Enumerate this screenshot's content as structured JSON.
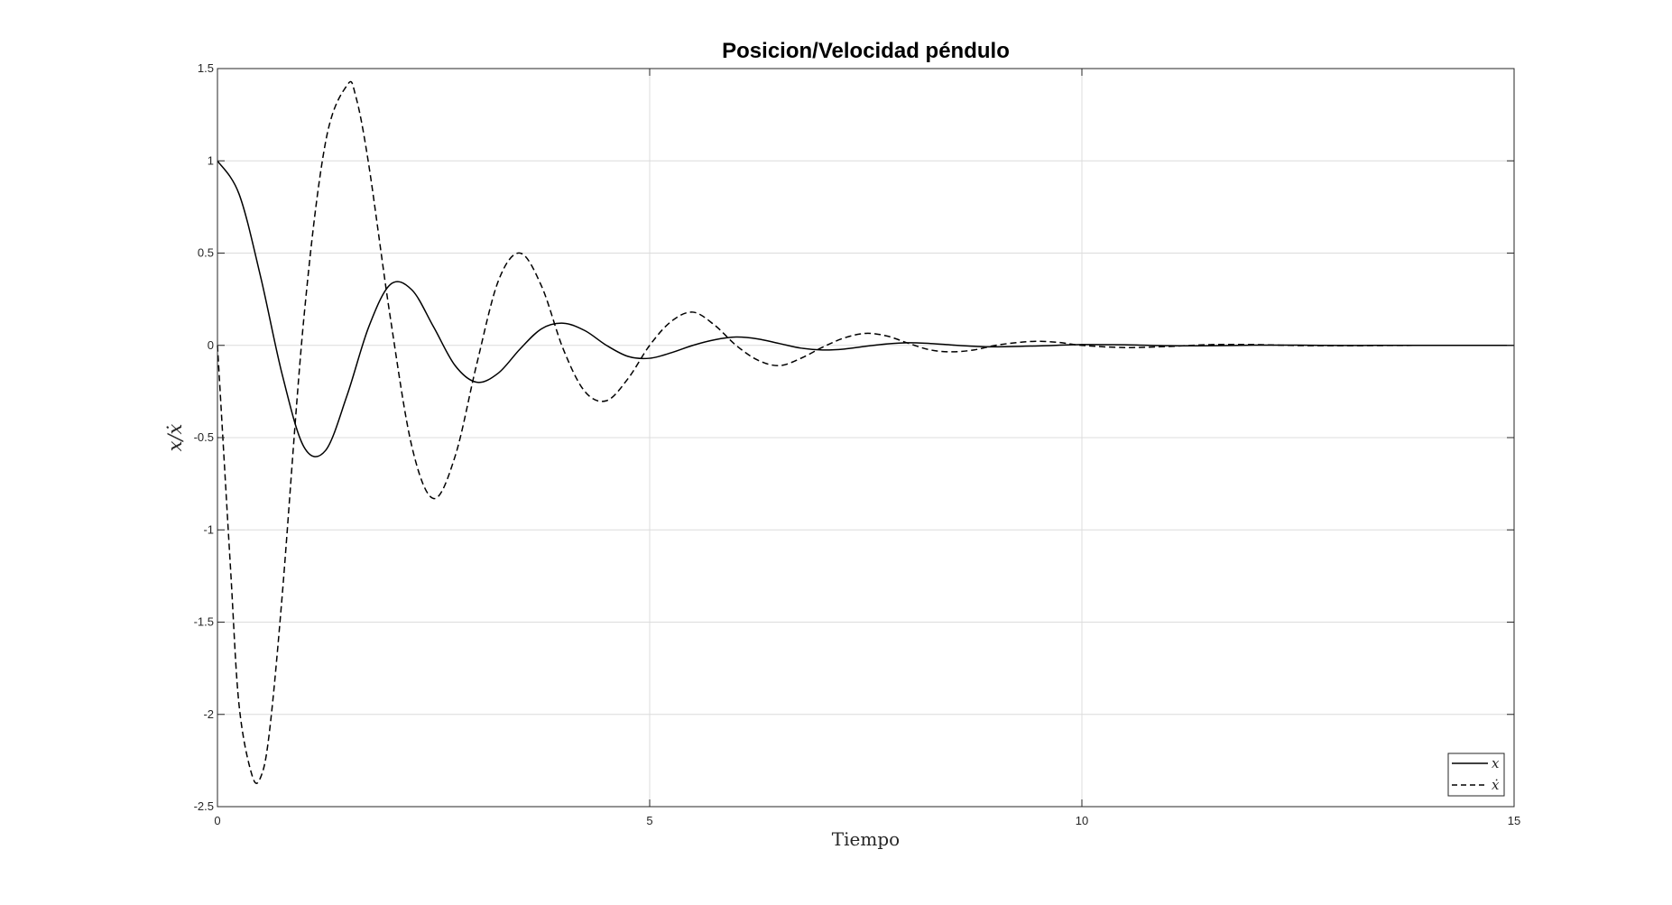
{
  "chart_data": {
    "type": "line",
    "title": "Posicion/Velocidad péndulo",
    "xlabel": "Tiempo",
    "ylabel": "x/ẋ",
    "xlim": [
      0,
      15
    ],
    "ylim": [
      -2.5,
      1.5
    ],
    "xticks": [
      0,
      5,
      10,
      15
    ],
    "xtick_labels": [
      "0",
      "5",
      "10",
      "15"
    ],
    "yticks": [
      -2.5,
      -2,
      -1.5,
      -1,
      -0.5,
      0,
      0.5,
      1,
      1.5
    ],
    "ytick_labels": [
      "-2.5",
      "-2",
      "-1.5",
      "-1",
      "-0.5",
      "0",
      "0.5",
      "1",
      "1.5"
    ],
    "grid": true,
    "legend_position": "bottom-right",
    "series": [
      {
        "name": "x",
        "style": "solid",
        "color": "#000000",
        "x": [
          0,
          0.25,
          0.5,
          0.75,
          1.0,
          1.25,
          1.5,
          1.75,
          2.0,
          2.25,
          2.5,
          2.75,
          3.0,
          3.25,
          3.5,
          3.75,
          4.0,
          4.25,
          4.5,
          4.75,
          5.0,
          5.25,
          5.5,
          5.75,
          6.0,
          6.25,
          6.5,
          6.75,
          7.0,
          7.25,
          7.5,
          7.75,
          8.0,
          8.25,
          8.5,
          8.75,
          9.0,
          9.5,
          10.0,
          10.5,
          11.0,
          11.5,
          12.0,
          12.5,
          13.0,
          13.5,
          14.0,
          14.5,
          15.0
        ],
        "y": [
          1.0,
          0.82,
          0.37,
          -0.16,
          -0.55,
          -0.57,
          -0.27,
          0.1,
          0.33,
          0.3,
          0.1,
          -0.11,
          -0.2,
          -0.15,
          -0.02,
          0.09,
          0.12,
          0.08,
          0.0,
          -0.06,
          -0.07,
          -0.04,
          0.0,
          0.03,
          0.045,
          0.035,
          0.01,
          -0.015,
          -0.025,
          -0.02,
          -0.005,
          0.008,
          0.014,
          0.01,
          0.002,
          -0.005,
          -0.008,
          -0.003,
          0.004,
          0.003,
          -0.002,
          -0.002,
          0.001,
          0.001,
          -0.0005,
          0.0,
          0.0,
          0.0,
          0.0
        ]
      },
      {
        "name": "ẋ",
        "style": "dashed",
        "color": "#000000",
        "x": [
          0,
          0.15,
          0.25,
          0.4,
          0.5,
          0.6,
          0.75,
          1.0,
          1.25,
          1.5,
          1.6,
          1.75,
          2.0,
          2.25,
          2.5,
          2.75,
          3.0,
          3.25,
          3.5,
          3.75,
          4.0,
          4.25,
          4.5,
          4.75,
          5.0,
          5.25,
          5.5,
          5.75,
          6.0,
          6.25,
          6.5,
          6.75,
          7.0,
          7.25,
          7.5,
          7.75,
          8.0,
          8.25,
          8.5,
          8.75,
          9.0,
          9.25,
          9.5,
          9.75,
          10.0,
          10.5,
          11.0,
          11.5,
          12.0,
          12.5,
          13.0,
          14.0,
          15.0
        ],
        "y": [
          0.0,
          -1.2,
          -1.95,
          -2.33,
          -2.34,
          -2.1,
          -1.35,
          0.15,
          1.1,
          1.41,
          1.35,
          0.98,
          0.15,
          -0.55,
          -0.83,
          -0.6,
          -0.1,
          0.35,
          0.5,
          0.32,
          -0.02,
          -0.25,
          -0.3,
          -0.18,
          0.0,
          0.13,
          0.18,
          0.11,
          0.0,
          -0.08,
          -0.11,
          -0.07,
          -0.01,
          0.04,
          0.065,
          0.05,
          0.01,
          -0.025,
          -0.035,
          -0.025,
          0.0,
          0.015,
          0.022,
          0.015,
          0.0,
          -0.012,
          -0.006,
          0.004,
          0.004,
          -0.001,
          -0.002,
          0.0,
          0.0
        ]
      }
    ]
  }
}
